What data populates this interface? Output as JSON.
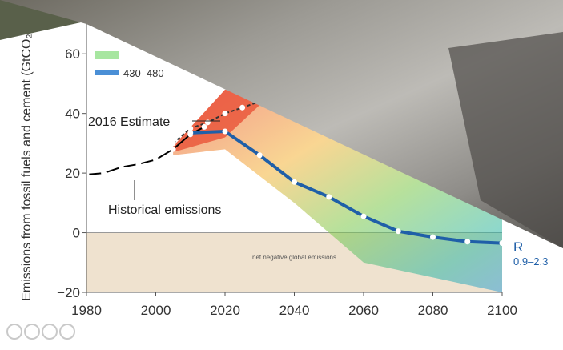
{
  "chart_data": {
    "type": "line",
    "ylabel": "Emissions from fossil fuels and cement (GtCO₂/yr)",
    "xlim": [
      1980,
      2100
    ],
    "ylim": [
      -20,
      70
    ],
    "x_ticks": [
      "1980",
      "2000",
      "2020",
      "2040",
      "2060",
      "2080",
      "2100"
    ],
    "y_ticks": [
      "−20",
      "0",
      "20",
      "40",
      "60"
    ],
    "legend": [
      {
        "label": "430–480",
        "color": "#4a8fd6"
      }
    ],
    "annotations": {
      "estimate": "2016 Estimate",
      "historical": "Historical emissions",
      "negative_zone": "net negative global emissions",
      "right_label": "R",
      "right_range": "0.9–2.3"
    },
    "colors": {
      "historical": "#000000",
      "pathway": "#1f5fa8",
      "negative_zone": "#efe2cf"
    },
    "series": [
      {
        "name": "Historical emissions",
        "x": [
          1980,
          1985,
          1990,
          1995,
          2000,
          2005,
          2010,
          2014
        ],
        "y": [
          19.5,
          20,
          22,
          23,
          24.5,
          28,
          33,
          35.5
        ]
      },
      {
        "name": "2016 Estimate",
        "x": [
          2005,
          2010,
          2015,
          2020,
          2025,
          2030
        ],
        "y": [
          30,
          35,
          37,
          40,
          42,
          44
        ]
      },
      {
        "name": "R",
        "x": [
          2010,
          2020,
          2030,
          2040,
          2050,
          2060,
          2070,
          2080,
          2090,
          2100
        ],
        "y": [
          33.5,
          34,
          26,
          17,
          12,
          5.5,
          0.5,
          -1.5,
          -3,
          -3.5
        ]
      }
    ]
  }
}
